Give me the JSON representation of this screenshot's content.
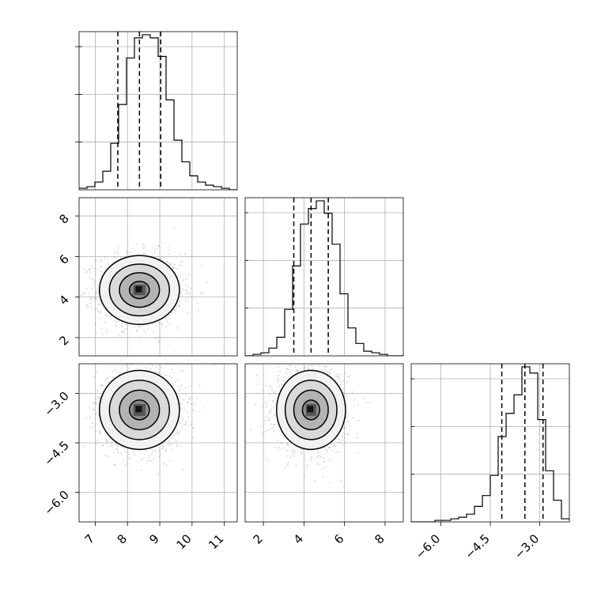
{
  "chart_data": {
    "type": "corner",
    "title": "",
    "parameters": [
      {
        "index": 0,
        "range": [
          6.5,
          11.4
        ],
        "ticks": [
          "7",
          "8",
          "9",
          "10",
          "11"
        ],
        "tick_values": [
          7,
          8,
          9,
          10,
          11
        ],
        "quantiles": [
          7.7,
          8.37,
          9.03
        ],
        "mean": 8.37,
        "sd": 0.62,
        "hist_edges_start": 6.5,
        "hist_bin": 0.245,
        "hist_counts": [
          1,
          2,
          5,
          12,
          30,
          55,
          85,
          98,
          100,
          98,
          86,
          58,
          32,
          18,
          9,
          5,
          3,
          2,
          1,
          0
        ]
      },
      {
        "index": 1,
        "range": [
          1.1,
          8.9
        ],
        "ticks": [
          "2",
          "4",
          "6",
          "8"
        ],
        "tick_values": [
          2,
          4,
          6,
          8
        ],
        "quantiles": [
          3.5,
          4.35,
          5.2
        ],
        "mean": 4.35,
        "sd": 0.85,
        "hist_edges_start": 1.1,
        "hist_bin": 0.39,
        "hist_counts": [
          0,
          1,
          2,
          5,
          12,
          30,
          58,
          85,
          95,
          100,
          92,
          72,
          40,
          18,
          8,
          3,
          2,
          1,
          0,
          0
        ]
      },
      {
        "index": 2,
        "range": [
          -6.9,
          -2.1
        ],
        "ticks": [
          "−6.0",
          "−4.5",
          "−3.0"
        ],
        "tick_values": [
          -6.0,
          -4.5,
          -3.0
        ],
        "y_ticks": [
          "−3.0",
          "−4.5",
          "−6.0"
        ],
        "quantiles": [
          -4.15,
          -3.45,
          -2.9
        ],
        "mean": -3.5,
        "sd": 0.6,
        "hist_edges_start": -6.9,
        "hist_bin": 0.24,
        "hist_counts": [
          0,
          0,
          0,
          1,
          1,
          2,
          3,
          5,
          10,
          17,
          30,
          55,
          70,
          82,
          100,
          96,
          66,
          33,
          14,
          2
        ]
      }
    ],
    "pairs": [
      {
        "x": 0,
        "y": 1,
        "centre": [
          8.37,
          4.35
        ],
        "sigma": [
          0.62,
          0.85
        ]
      },
      {
        "x": 0,
        "y": 2,
        "centre": [
          8.37,
          -3.5
        ],
        "sigma": [
          0.62,
          0.6
        ]
      },
      {
        "x": 1,
        "y": 2,
        "centre": [
          4.35,
          -3.5
        ],
        "sigma": [
          0.85,
          0.6
        ]
      }
    ],
    "grid": true,
    "hist_y_ticks": 3
  }
}
